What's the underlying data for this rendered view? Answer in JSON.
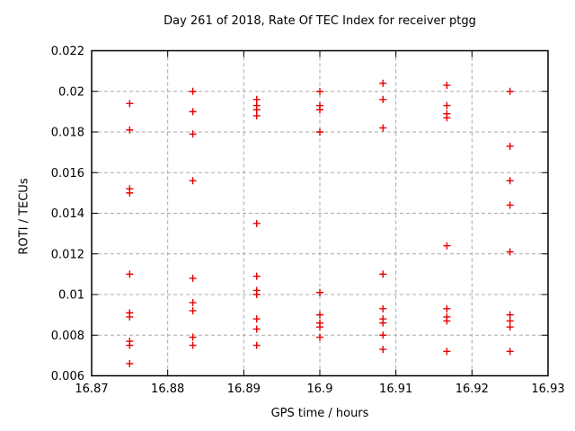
{
  "chart_data": {
    "type": "scatter",
    "title": "Day 261 of 2018, Rate Of TEC Index for receiver ptgg",
    "xlabel": "GPS time / hours",
    "ylabel": "ROTI / TECUs",
    "xlim": [
      16.87,
      16.93
    ],
    "ylim": [
      0.006,
      0.022
    ],
    "xticks": [
      "16.87",
      "16.88",
      "16.89",
      "16.9",
      "16.91",
      "16.92",
      "16.93"
    ],
    "yticks": [
      "0.006",
      "0.008",
      "0.01",
      "0.012",
      "0.014",
      "0.016",
      "0.018",
      "0.02",
      "0.022"
    ],
    "grid": true,
    "legend_position": "none",
    "grid_color": "#a8a8a8",
    "marker": {
      "shape": "plus",
      "color": "#e60000"
    },
    "series": [
      {
        "name": "ROTI",
        "groups": [
          {
            "x": 16.875,
            "y": [
              0.0194,
              0.0181,
              0.0152,
              0.015,
              0.011,
              0.0091,
              0.0089,
              0.0077,
              0.0075,
              0.0066
            ]
          },
          {
            "x": 16.8833,
            "y": [
              0.02,
              0.019,
              0.0179,
              0.0156,
              0.0108,
              0.0096,
              0.0092,
              0.0079,
              0.0075
            ]
          },
          {
            "x": 16.8917,
            "y": [
              0.0196,
              0.0193,
              0.0191,
              0.0188,
              0.0135,
              0.0109,
              0.0102,
              0.01,
              0.0088,
              0.0083,
              0.0075
            ]
          },
          {
            "x": 16.9,
            "y": [
              0.02,
              0.0193,
              0.0191,
              0.018,
              0.0101,
              0.009,
              0.0086,
              0.0084,
              0.0079
            ]
          },
          {
            "x": 16.9083,
            "y": [
              0.0204,
              0.0196,
              0.0182,
              0.011,
              0.0093,
              0.0088,
              0.0086,
              0.008,
              0.0073
            ]
          },
          {
            "x": 16.9167,
            "y": [
              0.0203,
              0.0193,
              0.0189,
              0.0187,
              0.0124,
              0.0093,
              0.0089,
              0.0087,
              0.0072
            ]
          },
          {
            "x": 16.925,
            "y": [
              0.02,
              0.0173,
              0.0156,
              0.0144,
              0.0121,
              0.009,
              0.0087,
              0.0084,
              0.0072
            ]
          }
        ]
      }
    ]
  }
}
